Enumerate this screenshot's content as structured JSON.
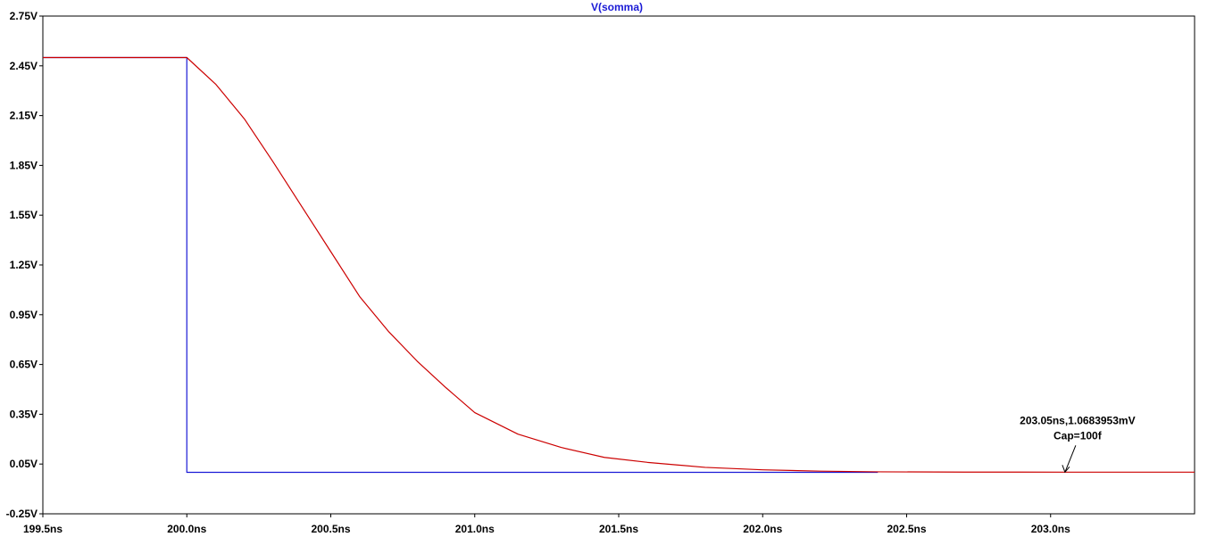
{
  "chart_data": {
    "type": "line",
    "title": "V(somma)",
    "xlabel": "",
    "ylabel": "",
    "xlim": [
      199.5,
      203.5
    ],
    "ylim": [
      -0.25,
      2.75
    ],
    "x_ticks": [
      {
        "value": 199.5,
        "label": "199.5ns"
      },
      {
        "value": 200.0,
        "label": "200.0ns"
      },
      {
        "value": 200.5,
        "label": "200.5ns"
      },
      {
        "value": 201.0,
        "label": "201.0ns"
      },
      {
        "value": 201.5,
        "label": "201.5ns"
      },
      {
        "value": 202.0,
        "label": "202.0ns"
      },
      {
        "value": 202.5,
        "label": "202.5ns"
      },
      {
        "value": 203.0,
        "label": "203.0ns"
      }
    ],
    "y_ticks": [
      {
        "value": 2.75,
        "label": "2.75V"
      },
      {
        "value": 2.45,
        "label": "2.45V"
      },
      {
        "value": 2.15,
        "label": "2.15V"
      },
      {
        "value": 1.85,
        "label": "1.85V"
      },
      {
        "value": 1.55,
        "label": "1.55V"
      },
      {
        "value": 1.25,
        "label": "1.25V"
      },
      {
        "value": 0.95,
        "label": "0.95V"
      },
      {
        "value": 0.65,
        "label": "0.65V"
      },
      {
        "value": 0.35,
        "label": "0.35V"
      },
      {
        "value": 0.05,
        "label": "0.05V"
      },
      {
        "value": -0.25,
        "label": "-0.25V"
      }
    ],
    "grid": false,
    "series": [
      {
        "color": "#1a1ad6",
        "points": [
          [
            199.5,
            2.5
          ],
          [
            200.0,
            2.5
          ],
          [
            200.0,
            0.0
          ],
          [
            202.4,
            0.0
          ]
        ]
      },
      {
        "color": "#cc0000",
        "points": [
          [
            199.5,
            2.5
          ],
          [
            200.0,
            2.5
          ],
          [
            200.1,
            2.34
          ],
          [
            200.2,
            2.13
          ],
          [
            200.3,
            1.87
          ],
          [
            200.4,
            1.6
          ],
          [
            200.5,
            1.33
          ],
          [
            200.6,
            1.06
          ],
          [
            200.7,
            0.85
          ],
          [
            200.8,
            0.67
          ],
          [
            200.9,
            0.51
          ],
          [
            201.0,
            0.36
          ],
          [
            201.15,
            0.23
          ],
          [
            201.3,
            0.15
          ],
          [
            201.45,
            0.09
          ],
          [
            201.6,
            0.06
          ],
          [
            201.8,
            0.03
          ],
          [
            202.0,
            0.015
          ],
          [
            202.2,
            0.007
          ],
          [
            202.4,
            0.003
          ],
          [
            202.7,
            0.0015
          ],
          [
            203.05,
            0.0011
          ],
          [
            203.5,
            0.001
          ]
        ]
      }
    ],
    "annotation": {
      "line1": "203.05ns,1.0683953mV",
      "line2": "Cap=100f",
      "x": 203.05,
      "y": 0.0010683953
    }
  }
}
